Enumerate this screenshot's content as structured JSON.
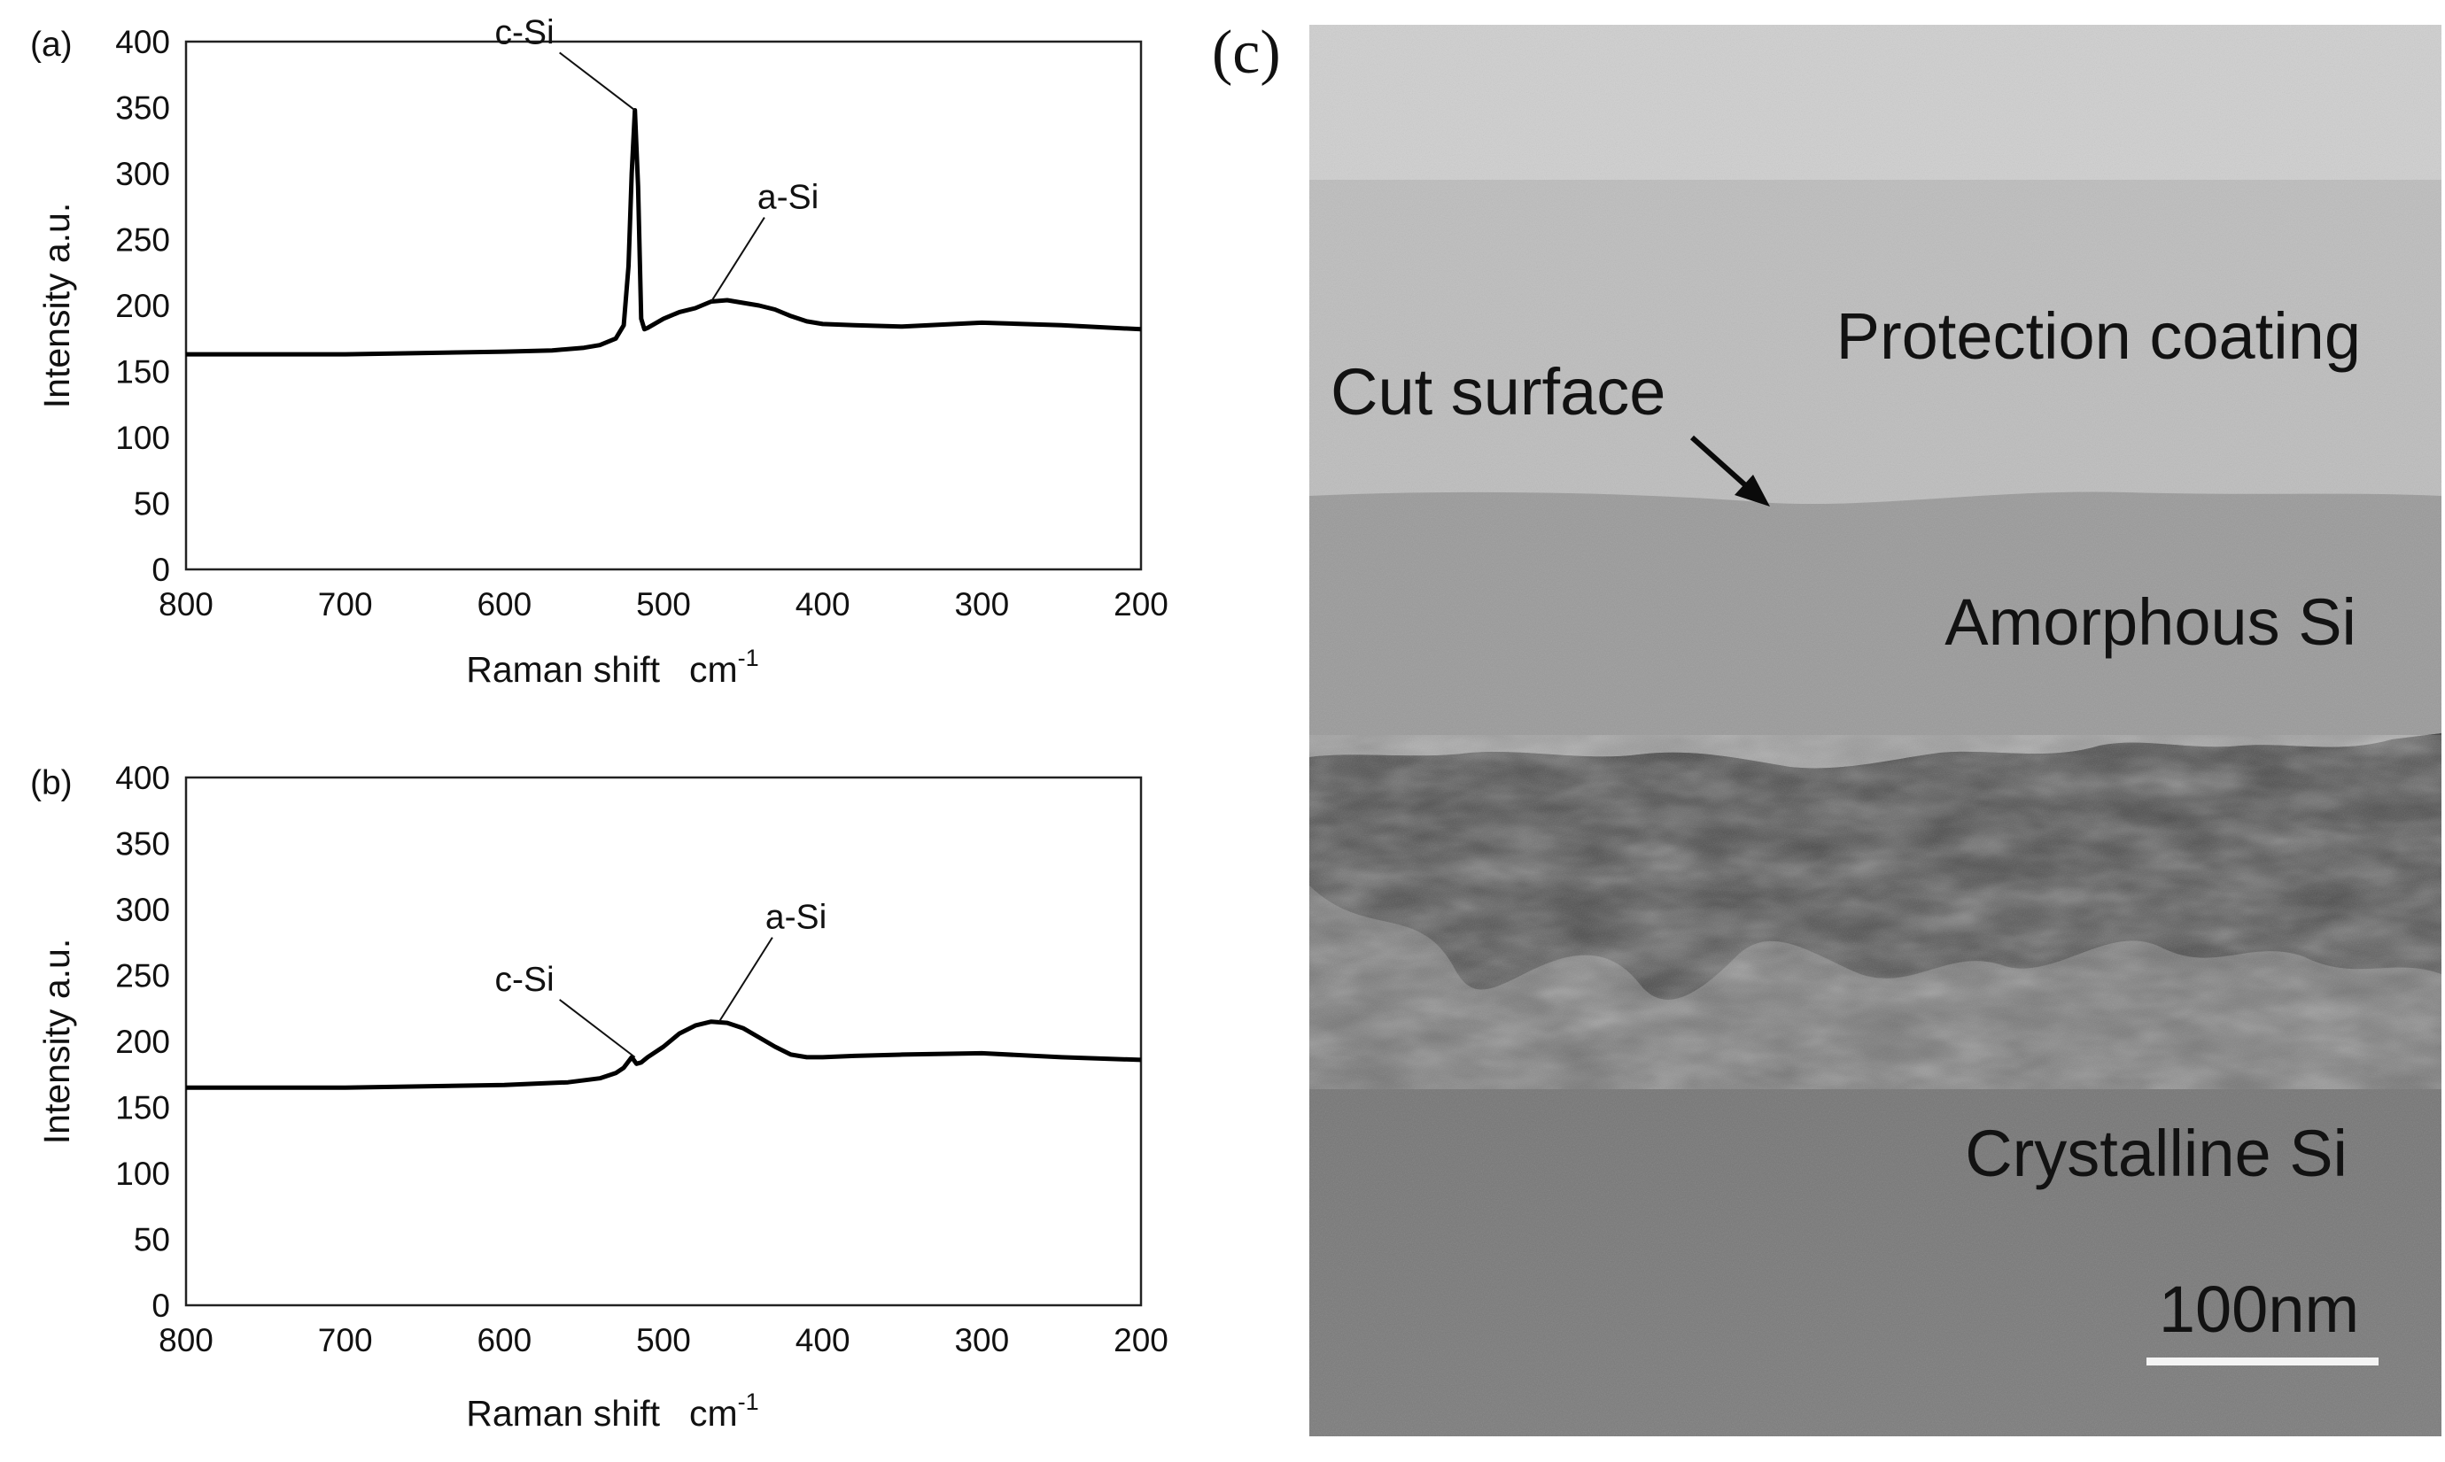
{
  "chart_data": [
    {
      "panel_label": "(a)",
      "type": "line",
      "xlabel": "Raman shift",
      "xunit": "cm",
      "xunit_exp": "-1",
      "ylabel": "Intensity  a.u.",
      "xlim": [
        800,
        200
      ],
      "ylim": [
        0,
        400
      ],
      "x_ticks": [
        800,
        700,
        600,
        500,
        400,
        300,
        200
      ],
      "y_ticks": [
        0,
        50,
        100,
        150,
        200,
        250,
        300,
        350,
        400
      ],
      "series": [
        {
          "x": [
            800,
            750,
            700,
            650,
            600,
            570,
            550,
            540,
            530,
            525,
            522,
            520,
            518,
            516,
            514,
            512,
            510,
            500,
            490,
            480,
            470,
            460,
            450,
            440,
            430,
            420,
            410,
            400,
            380,
            350,
            300,
            250,
            200
          ],
          "y": [
            163,
            163,
            163,
            164,
            165,
            166,
            168,
            170,
            175,
            185,
            230,
            300,
            348,
            290,
            190,
            182,
            183,
            190,
            195,
            198,
            203,
            204,
            202,
            200,
            197,
            192,
            188,
            186,
            185,
            184,
            187,
            185,
            182
          ]
        }
      ],
      "annotations": [
        {
          "text": "c-Si",
          "x": 518,
          "y": 348
        },
        {
          "text": "a-Si",
          "x": 470,
          "y": 203
        }
      ]
    },
    {
      "panel_label": "(b)",
      "type": "line",
      "xlabel": "Raman shift",
      "xunit": "cm",
      "xunit_exp": "-1",
      "ylabel": "Intensity  a.u.",
      "xlim": [
        800,
        200
      ],
      "ylim": [
        0,
        400
      ],
      "x_ticks": [
        800,
        700,
        600,
        500,
        400,
        300,
        200
      ],
      "y_ticks": [
        0,
        50,
        100,
        150,
        200,
        250,
        300,
        350,
        400
      ],
      "series": [
        {
          "x": [
            800,
            750,
            700,
            650,
            600,
            560,
            540,
            530,
            525,
            520,
            517,
            514,
            510,
            500,
            490,
            480,
            470,
            460,
            450,
            440,
            430,
            420,
            410,
            400,
            380,
            350,
            300,
            250,
            200
          ],
          "y": [
            165,
            165,
            165,
            166,
            167,
            169,
            172,
            176,
            180,
            188,
            183,
            184,
            188,
            196,
            206,
            212,
            215,
            214,
            210,
            203,
            196,
            190,
            188,
            188,
            189,
            190,
            191,
            188,
            186
          ]
        }
      ],
      "annotations": [
        {
          "text": "c-Si",
          "x": 518,
          "y": 188
        },
        {
          "text": "a-Si",
          "x": 465,
          "y": 215
        }
      ]
    }
  ],
  "tem": {
    "panel_label": "(c)",
    "labels": {
      "protection": "Protection coating",
      "cut_surface": "Cut surface",
      "amorphous": "Amorphous Si",
      "crystalline": "Crystalline Si"
    },
    "scale_bar": "100nm",
    "colors": {
      "protection_top": "#cfcfcf",
      "protection": "#bdbdbd",
      "amorphous": "#9a9a9a",
      "crystalline": "#7b7b7b",
      "damage": "#3e3e3e"
    }
  }
}
